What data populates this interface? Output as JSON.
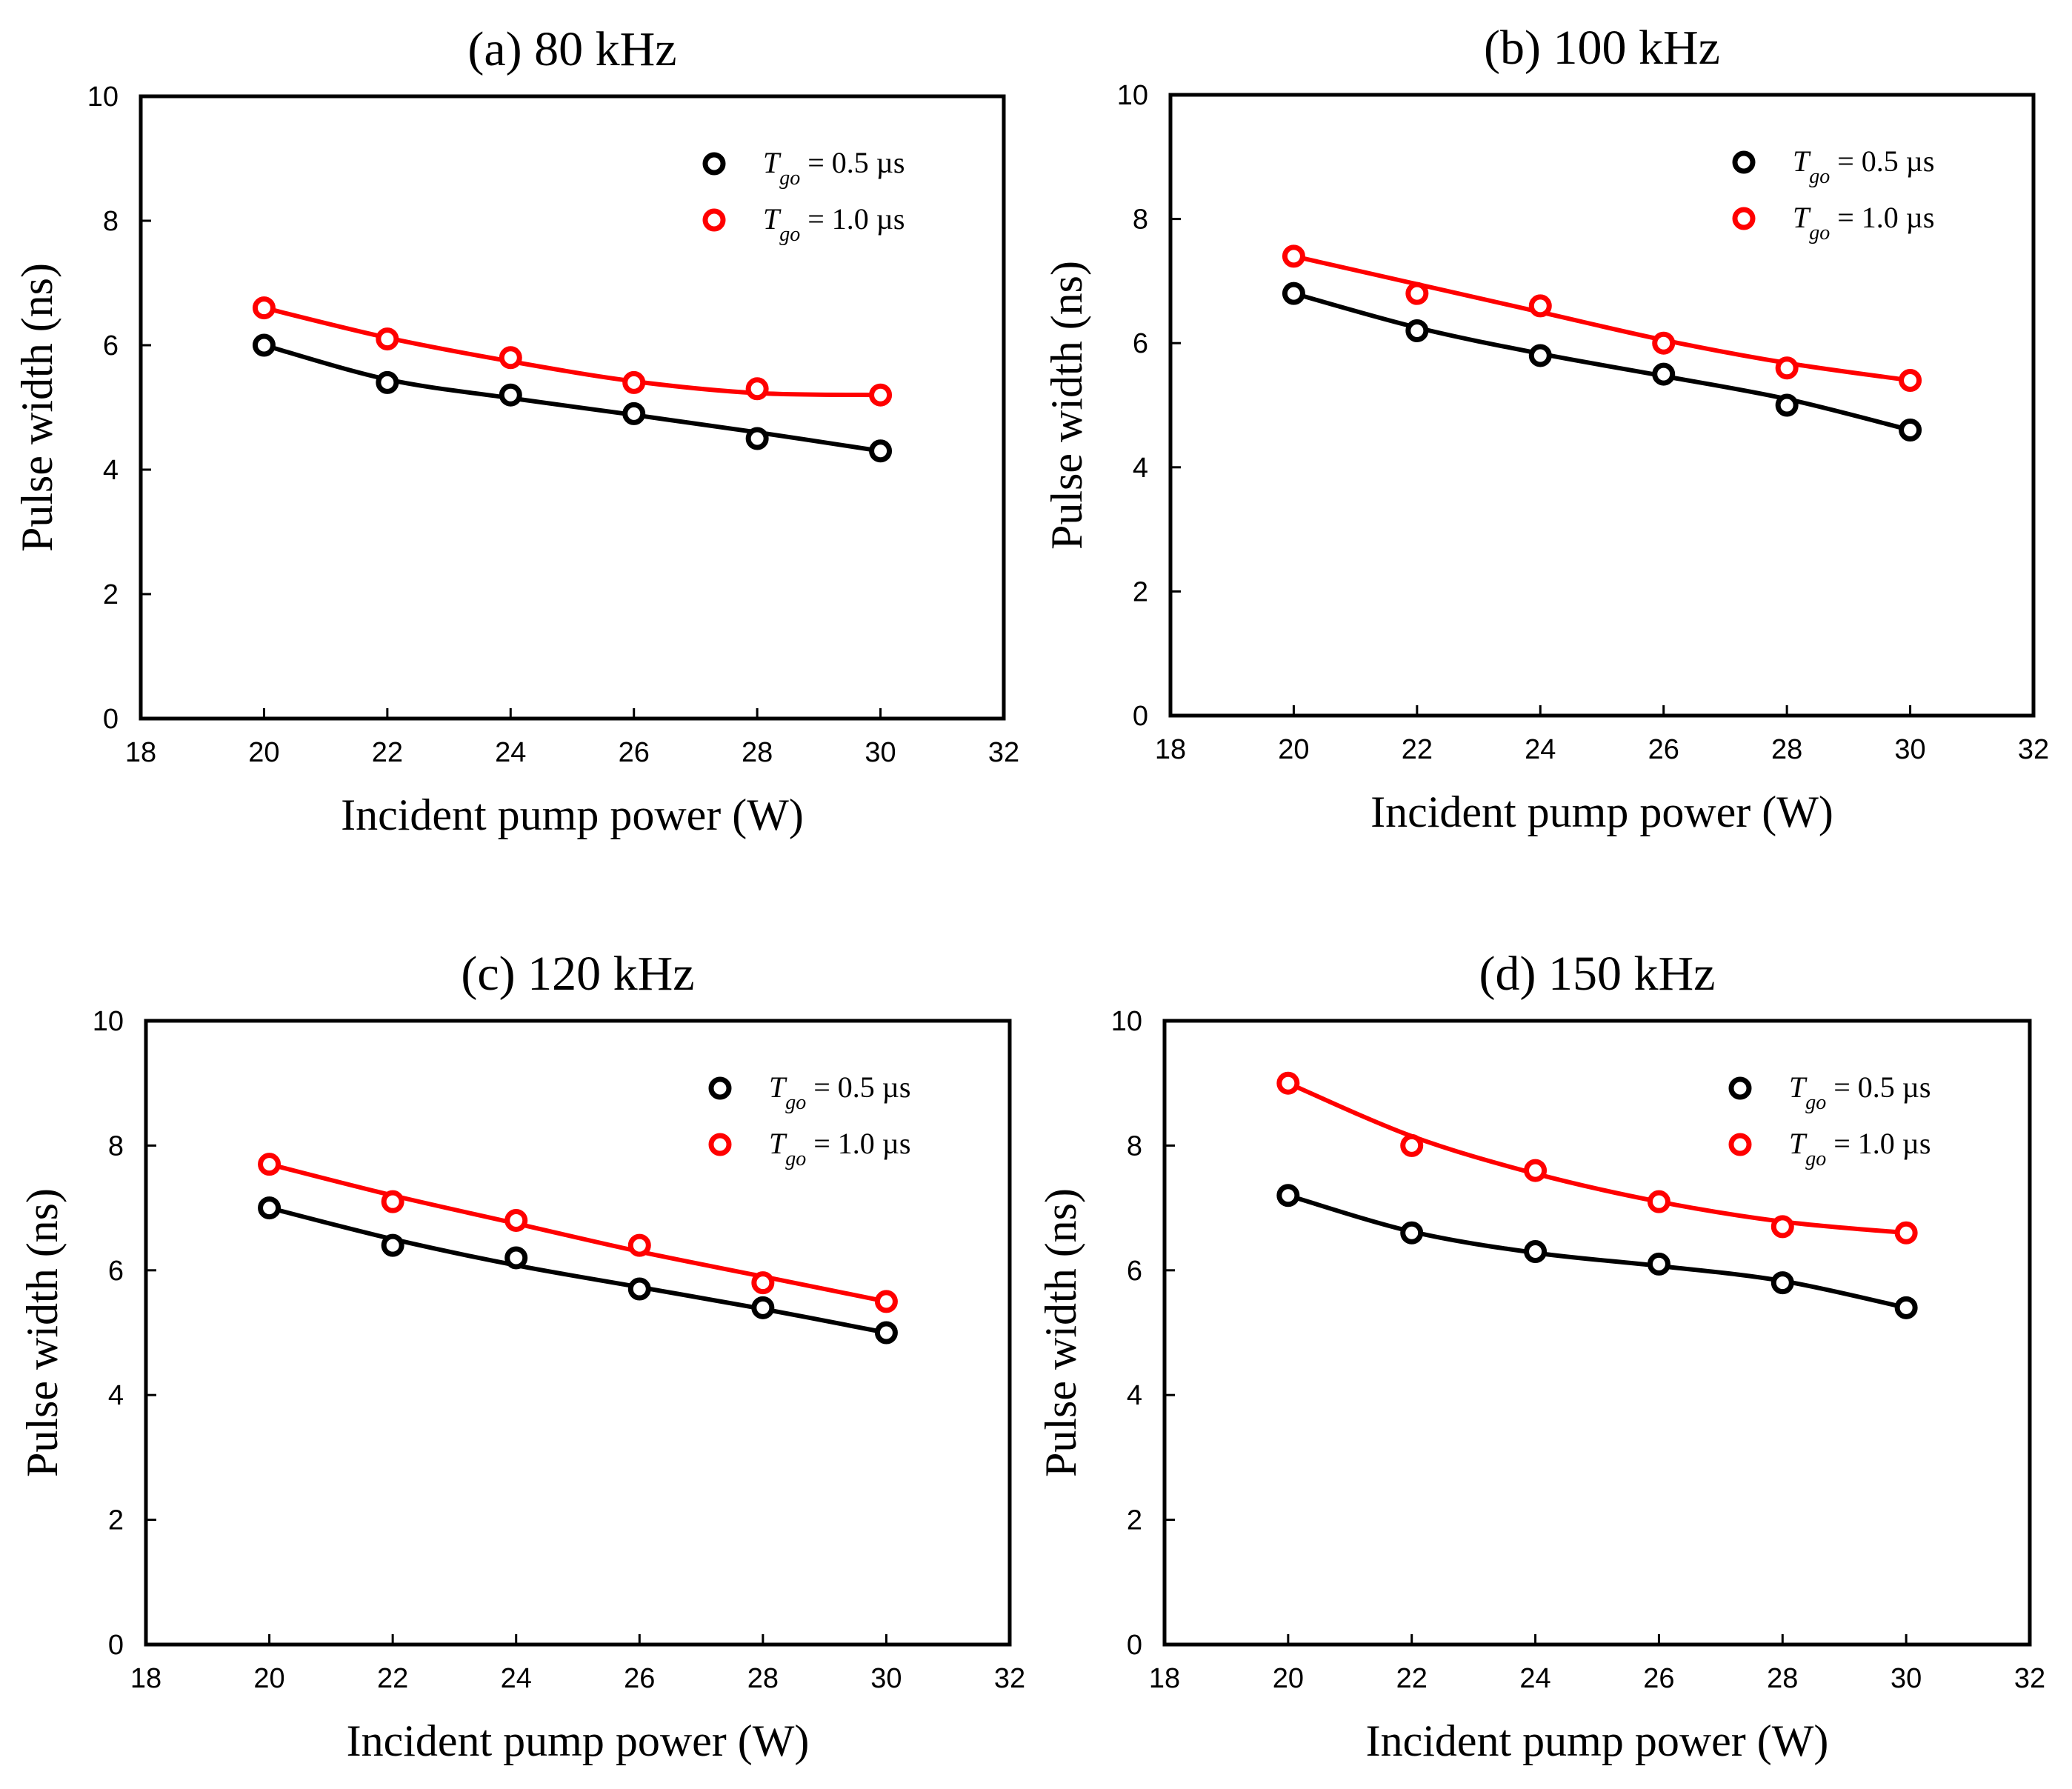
{
  "colors": {
    "series1": "#000000",
    "series2": "#ff0000",
    "axis": "#000000"
  },
  "chart_data": [
    {
      "type": "scatter",
      "title": "(a) 80 kHz",
      "xlabel": "Incident pump power (W)",
      "ylabel": "Pulse width (ns)",
      "xlim": [
        18,
        32
      ],
      "ylim": [
        0,
        10
      ],
      "xticks": [
        "18",
        "20",
        "22",
        "24",
        "26",
        "28",
        "30",
        "32"
      ],
      "yticks": [
        "0",
        "2",
        "4",
        "6",
        "8",
        "10"
      ],
      "legend_position": "top-right",
      "series": [
        {
          "name": "T_go = 0.5 µs",
          "legend": {
            "var": "T",
            "sub": "go",
            "rest": " = 0.5 µs"
          },
          "color": "#000000",
          "x": [
            20,
            22,
            24,
            26,
            28,
            30
          ],
          "y": [
            6.0,
            5.4,
            5.2,
            4.9,
            4.5,
            4.3
          ],
          "fit": [
            [
              20,
              6.0
            ],
            [
              22,
              5.45
            ],
            [
              24,
              5.15
            ],
            [
              26,
              4.88
            ],
            [
              28,
              4.6
            ],
            [
              30,
              4.3
            ]
          ]
        },
        {
          "name": "T_go = 1.0 µs",
          "legend": {
            "var": "T",
            "sub": "go",
            "rest": " = 1.0 µs"
          },
          "color": "#ff0000",
          "x": [
            20,
            22,
            24,
            26,
            28,
            30
          ],
          "y": [
            6.6,
            6.1,
            5.8,
            5.4,
            5.3,
            5.2
          ],
          "fit": [
            [
              20,
              6.6
            ],
            [
              22,
              6.12
            ],
            [
              24,
              5.74
            ],
            [
              26,
              5.42
            ],
            [
              28,
              5.23
            ],
            [
              30,
              5.2
            ]
          ]
        }
      ]
    },
    {
      "type": "scatter",
      "title": "(b) 100 kHz",
      "xlabel": "Incident pump power (W)",
      "ylabel": "Pulse width (ns)",
      "xlim": [
        18,
        32
      ],
      "ylim": [
        0,
        10
      ],
      "xticks": [
        "18",
        "20",
        "22",
        "24",
        "26",
        "28",
        "30",
        "32"
      ],
      "yticks": [
        "0",
        "2",
        "4",
        "6",
        "8",
        "10"
      ],
      "legend_position": "top-right",
      "series": [
        {
          "name": "T_go = 0.5 µs",
          "legend": {
            "var": "T",
            "sub": "go",
            "rest": " = 0.5 µs"
          },
          "color": "#000000",
          "x": [
            20,
            22,
            24,
            26,
            28,
            30
          ],
          "y": [
            6.8,
            6.2,
            5.8,
            5.5,
            5.0,
            4.6
          ],
          "fit": [
            [
              20,
              6.8
            ],
            [
              22,
              6.25
            ],
            [
              24,
              5.83
            ],
            [
              26,
              5.47
            ],
            [
              28,
              5.1
            ],
            [
              30,
              4.6
            ]
          ]
        },
        {
          "name": "T_go = 1.0 µs",
          "legend": {
            "var": "T",
            "sub": "go",
            "rest": " = 1.0 µs"
          },
          "color": "#ff0000",
          "x": [
            20,
            22,
            24,
            26,
            28,
            30
          ],
          "y": [
            7.4,
            6.8,
            6.6,
            6.0,
            5.6,
            5.4
          ],
          "fit": [
            [
              20,
              7.4
            ],
            [
              22,
              6.95
            ],
            [
              24,
              6.5
            ],
            [
              26,
              6.05
            ],
            [
              28,
              5.68
            ],
            [
              30,
              5.4
            ]
          ]
        }
      ]
    },
    {
      "type": "scatter",
      "title": "(c) 120 kHz",
      "xlabel": "Incident pump power (W)",
      "ylabel": "Pulse width (ns)",
      "xlim": [
        18,
        32
      ],
      "ylim": [
        0,
        10
      ],
      "xticks": [
        "18",
        "20",
        "22",
        "24",
        "26",
        "28",
        "30",
        "32"
      ],
      "yticks": [
        "0",
        "2",
        "4",
        "6",
        "8",
        "10"
      ],
      "legend_position": "top-right",
      "series": [
        {
          "name": "T_go = 0.5 µs",
          "legend": {
            "var": "T",
            "sub": "go",
            "rest": " = 0.5 µs"
          },
          "color": "#000000",
          "x": [
            20,
            22,
            24,
            26,
            28,
            30
          ],
          "y": [
            7.0,
            6.4,
            6.2,
            5.7,
            5.4,
            5.0
          ],
          "fit": [
            [
              20,
              7.0
            ],
            [
              22,
              6.5
            ],
            [
              24,
              6.08
            ],
            [
              26,
              5.73
            ],
            [
              28,
              5.38
            ],
            [
              30,
              5.0
            ]
          ]
        },
        {
          "name": "T_go = 1.0 µs",
          "legend": {
            "var": "T",
            "sub": "go",
            "rest": " = 1.0 µs"
          },
          "color": "#ff0000",
          "x": [
            20,
            22,
            24,
            26,
            28,
            30
          ],
          "y": [
            7.7,
            7.1,
            6.8,
            6.4,
            5.8,
            5.5
          ],
          "fit": [
            [
              20,
              7.7
            ],
            [
              22,
              7.2
            ],
            [
              24,
              6.75
            ],
            [
              26,
              6.3
            ],
            [
              28,
              5.9
            ],
            [
              30,
              5.5
            ]
          ]
        }
      ]
    },
    {
      "type": "scatter",
      "title": "(d) 150 kHz",
      "xlabel": "Incident pump power (W)",
      "ylabel": "Pulse width (ns)",
      "xlim": [
        18,
        32
      ],
      "ylim": [
        0,
        10
      ],
      "xticks": [
        "18",
        "20",
        "22",
        "24",
        "26",
        "28",
        "30",
        "32"
      ],
      "yticks": [
        "0",
        "2",
        "4",
        "6",
        "8",
        "10"
      ],
      "legend_position": "top-right",
      "series": [
        {
          "name": "T_go = 0.5 µs",
          "legend": {
            "var": "T",
            "sub": "go",
            "rest": " = 0.5 µs"
          },
          "color": "#000000",
          "x": [
            20,
            22,
            24,
            26,
            28,
            30
          ],
          "y": [
            7.2,
            6.6,
            6.3,
            6.1,
            5.8,
            5.4
          ],
          "fit": [
            [
              20,
              7.2
            ],
            [
              22,
              6.62
            ],
            [
              24,
              6.28
            ],
            [
              26,
              6.07
            ],
            [
              28,
              5.83
            ],
            [
              30,
              5.4
            ]
          ]
        },
        {
          "name": "T_go = 1.0 µs",
          "legend": {
            "var": "T",
            "sub": "go",
            "rest": " = 1.0 µs"
          },
          "color": "#ff0000",
          "x": [
            20,
            22,
            24,
            26,
            28,
            30
          ],
          "y": [
            9.0,
            8.0,
            7.6,
            7.1,
            6.7,
            6.6
          ],
          "fit": [
            [
              20,
              9.0
            ],
            [
              22,
              8.15
            ],
            [
              24,
              7.55
            ],
            [
              26,
              7.1
            ],
            [
              28,
              6.78
            ],
            [
              30,
              6.6
            ]
          ]
        }
      ]
    }
  ]
}
